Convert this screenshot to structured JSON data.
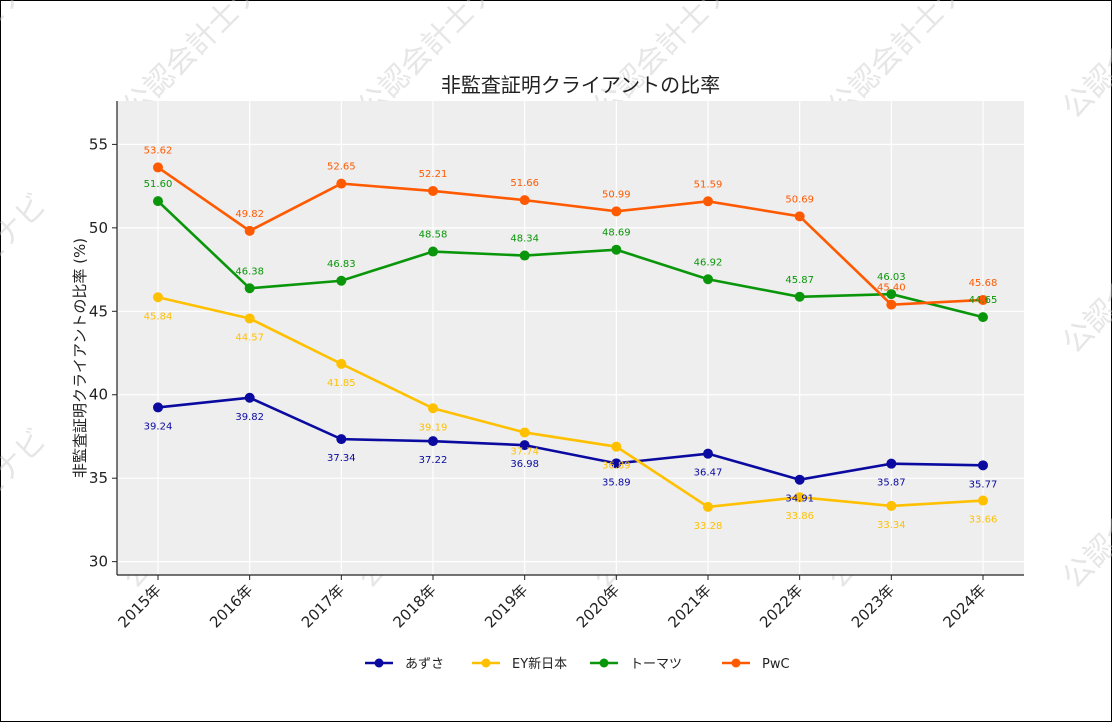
{
  "chart_data": {
    "type": "line",
    "title": "非監査証明クライアントの比率",
    "xlabel": "",
    "ylabel": "非監査証明クライアントの比率 (%)",
    "categories": [
      "2015年",
      "2016年",
      "2017年",
      "2018年",
      "2019年",
      "2020年",
      "2021年",
      "2022年",
      "2023年",
      "2024年"
    ],
    "ylim": [
      29.2,
      57.6
    ],
    "yticks": [
      30,
      35,
      40,
      45,
      50,
      55
    ],
    "grid": true,
    "legend": "bottom-center",
    "series": [
      {
        "name": "あずさ",
        "color": "#0a0aa0",
        "values": [
          39.24,
          39.82,
          37.34,
          37.22,
          36.98,
          35.89,
          36.47,
          34.91,
          35.87,
          35.77
        ],
        "labels": [
          "39.24",
          "39.82",
          "37.34",
          "37.22",
          "36.98",
          "35.89",
          "36.47",
          "34.91",
          "35.87",
          "35.77"
        ]
      },
      {
        "name": "EY新日本",
        "color": "#ffc000",
        "values": [
          45.84,
          44.57,
          41.85,
          39.19,
          37.74,
          36.89,
          33.28,
          33.86,
          33.34,
          33.66
        ],
        "labels": [
          "45.84",
          "44.57",
          "41.85",
          "39.19",
          "37.74",
          "36.89",
          "33.28",
          "33.86",
          "33.34",
          "33.66"
        ]
      },
      {
        "name": "トーマツ",
        "color": "#0a960a",
        "values": [
          51.6,
          46.38,
          46.83,
          48.58,
          48.34,
          48.69,
          46.92,
          45.87,
          46.03,
          44.65
        ],
        "labels": [
          "51.60",
          "46.38",
          "46.83",
          "48.58",
          "48.34",
          "48.69",
          "46.92",
          "45.87",
          "46.03",
          "44.65"
        ]
      },
      {
        "name": "PwC",
        "color": "#ff5a00",
        "values": [
          53.62,
          49.82,
          52.65,
          52.21,
          51.66,
          50.99,
          51.59,
          50.69,
          45.4,
          45.68
        ],
        "labels": [
          "53.62",
          "49.82",
          "52.65",
          "52.21",
          "51.66",
          "50.99",
          "51.59",
          "50.69",
          "45.40",
          "45.68"
        ]
      }
    ],
    "label_offsets": {
      "あずさ": "below",
      "EY新日本": "below",
      "トーマツ": "above",
      "PwC": "above"
    }
  },
  "watermark": "公認会計士ナビ"
}
